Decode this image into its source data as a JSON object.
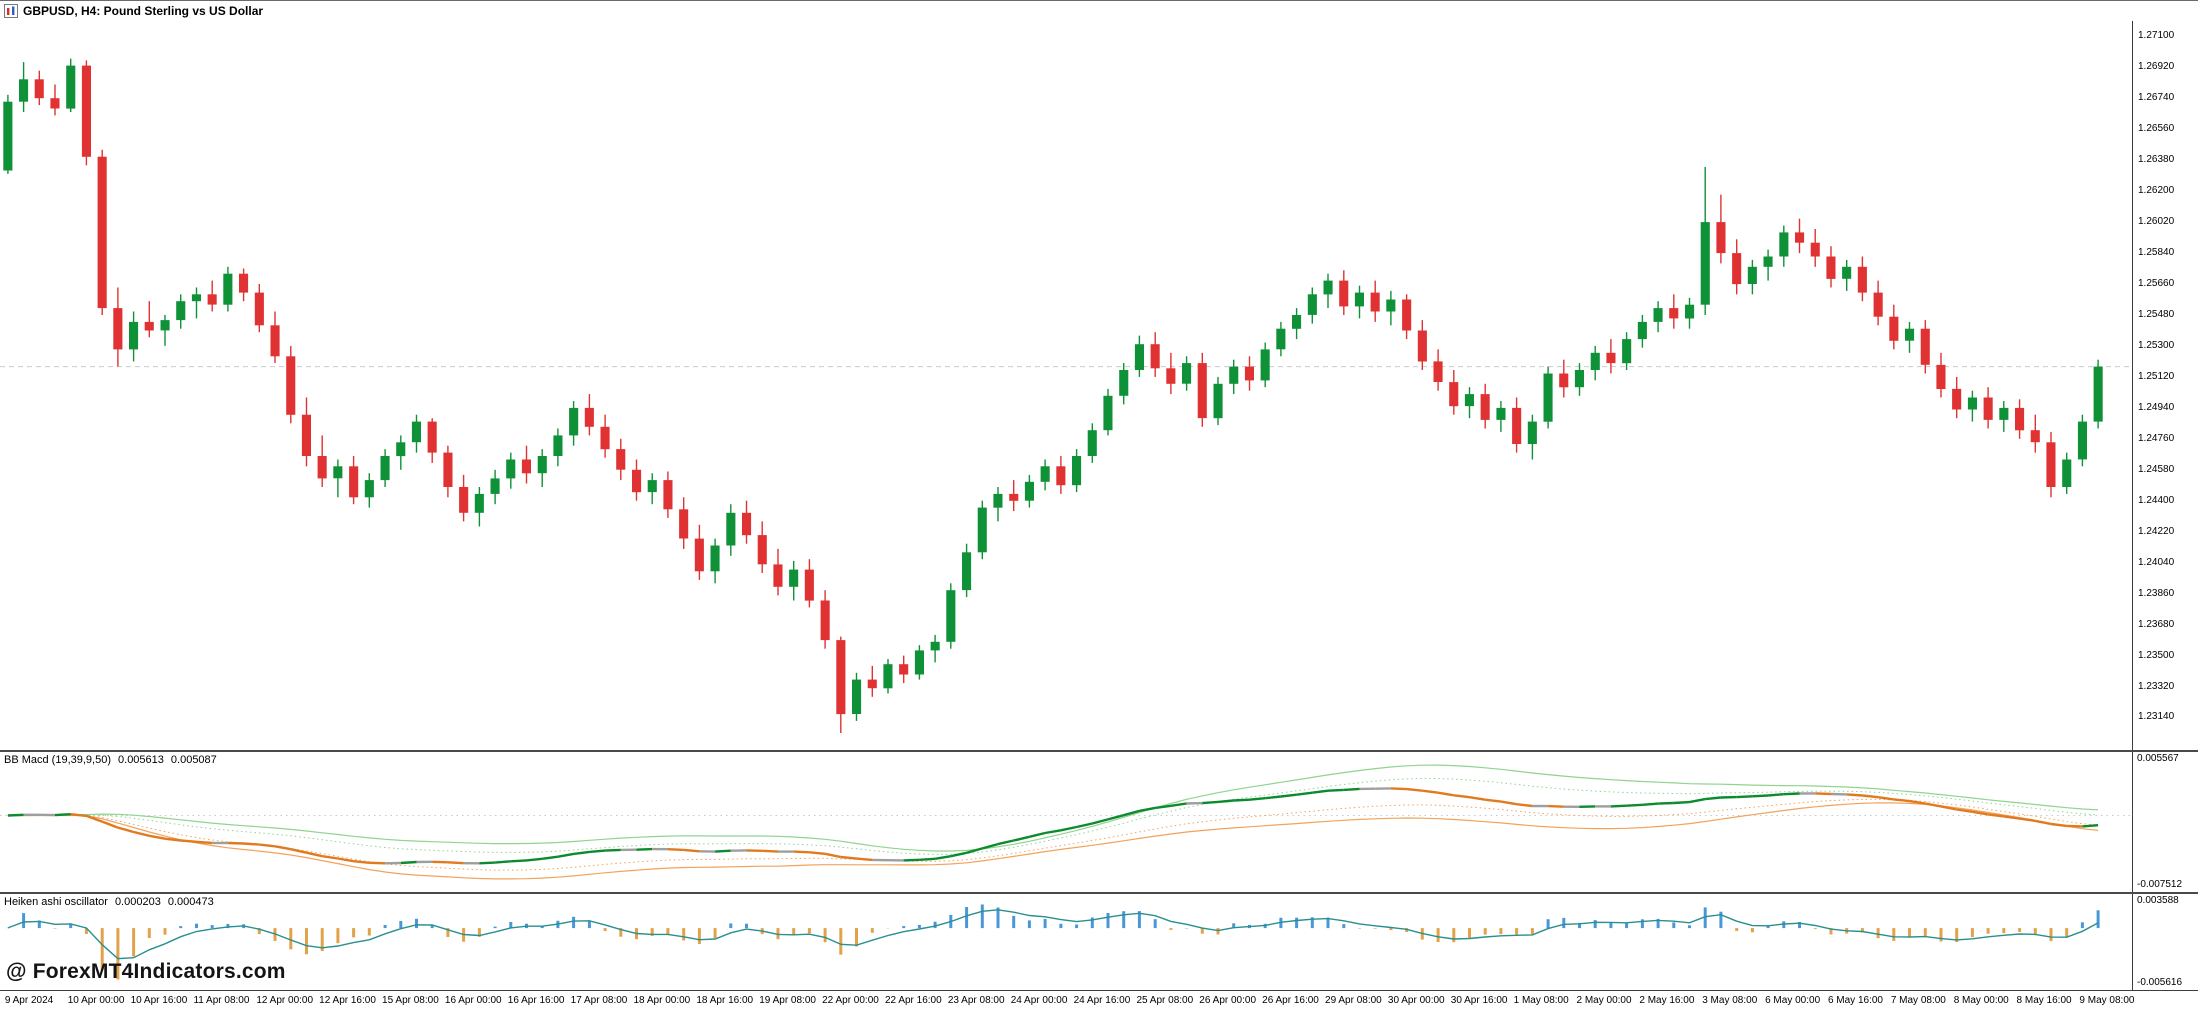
{
  "window": {
    "title": "GBPUSD, H4: Pound Sterling vs US Dollar",
    "symbol": "GBPUSD",
    "timeframe": "H4"
  },
  "watermark": "@ ForexMT4Indicators.com",
  "colors": {
    "bull": "#0f9138",
    "bear": "#e03232",
    "bid_line": "#cccccc",
    "zero_line": "#c8c8c8",
    "bb_line_up": "#0c8a2e",
    "bb_line_dn": "#e07a1e",
    "bb_line_flat": "#9e9e9e",
    "bb_band_up": "#8fd48f",
    "bb_band_dn": "#f2a25c",
    "ha_pos": "#4a97d8",
    "ha_neg": "#e2a24a",
    "ha_line": "#2a8f8f"
  },
  "chart_data": {
    "type": "candlestick",
    "title": "GBPUSD, H4: Pound Sterling vs US Dollar",
    "symbol": "GBPUSD",
    "timeframe": "H4",
    "y_max": 1.2716,
    "y_min": 1.2298,
    "bid": 1.2518,
    "price_axis_labels": [
      "1.27100",
      "1.26920",
      "1.26740",
      "1.26560",
      "1.26380",
      "1.26200",
      "1.26020",
      "1.25840",
      "1.25660",
      "1.25480",
      "1.25300",
      "1.25120",
      "1.24940",
      "1.24760",
      "1.24580",
      "1.24400",
      "1.24220",
      "1.24040",
      "1.23860",
      "1.23680",
      "1.23500",
      "1.23320",
      "1.23140"
    ],
    "candles_per_tick": 4,
    "x_tick_labels": [
      "9 Apr 2024",
      "10 Apr 00:00",
      "10 Apr 16:00",
      "11 Apr 08:00",
      "12 Apr 00:00",
      "12 Apr 16:00",
      "15 Apr 08:00",
      "16 Apr 00:00",
      "16 Apr 16:00",
      "17 Apr 08:00",
      "18 Apr 00:00",
      "18 Apr 16:00",
      "19 Apr 08:00",
      "22 Apr 00:00",
      "22 Apr 16:00",
      "23 Apr 08:00",
      "24 Apr 00:00",
      "24 Apr 16:00",
      "25 Apr 08:00",
      "26 Apr 00:00",
      "26 Apr 16:00",
      "29 Apr 08:00",
      "30 Apr 00:00",
      "30 Apr 16:00",
      "1 May 08:00",
      "2 May 00:00",
      "2 May 16:00",
      "3 May 08:00",
      "6 May 00:00",
      "6 May 16:00",
      "7 May 08:00",
      "8 May 00:00",
      "8 May 16:00",
      "9 May 08:00"
    ],
    "ohlc": [
      [
        1.2632,
        1.2676,
        1.263,
        1.2672
      ],
      [
        1.2672,
        1.2695,
        1.2666,
        1.2685
      ],
      [
        1.2685,
        1.269,
        1.267,
        1.2674
      ],
      [
        1.2674,
        1.2682,
        1.2664,
        1.2668
      ],
      [
        1.2668,
        1.2697,
        1.2666,
        1.2693
      ],
      [
        1.2693,
        1.2696,
        1.2635,
        1.264
      ],
      [
        1.264,
        1.2644,
        1.2548,
        1.2552
      ],
      [
        1.2552,
        1.2564,
        1.2518,
        1.2528
      ],
      [
        1.2528,
        1.255,
        1.2521,
        1.2544
      ],
      [
        1.2544,
        1.2556,
        1.2535,
        1.2539
      ],
      [
        1.2539,
        1.2548,
        1.253,
        1.2545
      ],
      [
        1.2545,
        1.256,
        1.254,
        1.2556
      ],
      [
        1.2556,
        1.2564,
        1.2546,
        1.256
      ],
      [
        1.256,
        1.2568,
        1.255,
        1.2554
      ],
      [
        1.2554,
        1.2576,
        1.255,
        1.2572
      ],
      [
        1.2572,
        1.2575,
        1.2556,
        1.2561
      ],
      [
        1.2561,
        1.2566,
        1.2538,
        1.2542
      ],
      [
        1.2542,
        1.255,
        1.252,
        1.2524
      ],
      [
        1.2524,
        1.253,
        1.2485,
        1.249
      ],
      [
        1.249,
        1.25,
        1.246,
        1.2466
      ],
      [
        1.2466,
        1.2478,
        1.2448,
        1.2453
      ],
      [
        1.2453,
        1.2464,
        1.2442,
        1.246
      ],
      [
        1.246,
        1.2466,
        1.2438,
        1.2442
      ],
      [
        1.2442,
        1.2456,
        1.2436,
        1.2452
      ],
      [
        1.2452,
        1.247,
        1.2448,
        1.2466
      ],
      [
        1.2466,
        1.2478,
        1.2458,
        1.2474
      ],
      [
        1.2474,
        1.249,
        1.2468,
        1.2486
      ],
      [
        1.2486,
        1.2488,
        1.2462,
        1.2468
      ],
      [
        1.2468,
        1.2472,
        1.2442,
        1.2448
      ],
      [
        1.2448,
        1.2455,
        1.2428,
        1.2433
      ],
      [
        1.2433,
        1.2448,
        1.2425,
        1.2444
      ],
      [
        1.2444,
        1.2458,
        1.2438,
        1.2453
      ],
      [
        1.2453,
        1.2468,
        1.2447,
        1.2464
      ],
      [
        1.2464,
        1.2472,
        1.245,
        1.2456
      ],
      [
        1.2456,
        1.247,
        1.2448,
        1.2466
      ],
      [
        1.2466,
        1.2482,
        1.246,
        1.2478
      ],
      [
        1.2478,
        1.2498,
        1.2472,
        1.2494
      ],
      [
        1.2494,
        1.2502,
        1.2478,
        1.2483
      ],
      [
        1.2483,
        1.249,
        1.2465,
        1.247
      ],
      [
        1.247,
        1.2476,
        1.2452,
        1.2458
      ],
      [
        1.2458,
        1.2464,
        1.244,
        1.2445
      ],
      [
        1.2445,
        1.2456,
        1.2438,
        1.2452
      ],
      [
        1.2452,
        1.2457,
        1.243,
        1.2435
      ],
      [
        1.2435,
        1.2442,
        1.2412,
        1.2418
      ],
      [
        1.2418,
        1.2426,
        1.2394,
        1.2399
      ],
      [
        1.2399,
        1.2418,
        1.2392,
        1.2414
      ],
      [
        1.2414,
        1.2438,
        1.2408,
        1.2433
      ],
      [
        1.2433,
        1.244,
        1.2415,
        1.242
      ],
      [
        1.242,
        1.2428,
        1.2398,
        1.2403
      ],
      [
        1.2403,
        1.2412,
        1.2385,
        1.239
      ],
      [
        1.239,
        1.2405,
        1.2382,
        1.24
      ],
      [
        1.24,
        1.2406,
        1.2378,
        1.2382
      ],
      [
        1.2382,
        1.2388,
        1.2354,
        1.2359
      ],
      [
        1.2359,
        1.2361,
        1.2305,
        1.2316
      ],
      [
        1.2316,
        1.234,
        1.2312,
        1.2336
      ],
      [
        1.2336,
        1.2344,
        1.2326,
        1.2331
      ],
      [
        1.2331,
        1.2348,
        1.2328,
        1.2345
      ],
      [
        1.2345,
        1.235,
        1.2334,
        1.2339
      ],
      [
        1.2339,
        1.2356,
        1.2336,
        1.2353
      ],
      [
        1.2353,
        1.2362,
        1.2346,
        1.2358
      ],
      [
        1.2358,
        1.2392,
        1.2354,
        1.2388
      ],
      [
        1.2388,
        1.2415,
        1.2384,
        1.241
      ],
      [
        1.241,
        1.244,
        1.2406,
        1.2436
      ],
      [
        1.2436,
        1.2448,
        1.2428,
        1.2444
      ],
      [
        1.2444,
        1.2452,
        1.2434,
        1.244
      ],
      [
        1.244,
        1.2455,
        1.2436,
        1.2451
      ],
      [
        1.2451,
        1.2464,
        1.2446,
        1.246
      ],
      [
        1.246,
        1.2466,
        1.2444,
        1.2449
      ],
      [
        1.2449,
        1.247,
        1.2445,
        1.2466
      ],
      [
        1.2466,
        1.2485,
        1.2462,
        1.2481
      ],
      [
        1.2481,
        1.2505,
        1.2478,
        1.2501
      ],
      [
        1.2501,
        1.252,
        1.2496,
        1.2516
      ],
      [
        1.2516,
        1.2536,
        1.2512,
        1.2531
      ],
      [
        1.2531,
        1.2538,
        1.2512,
        1.2517
      ],
      [
        1.2517,
        1.2526,
        1.2502,
        1.2508
      ],
      [
        1.2508,
        1.2524,
        1.2504,
        1.252
      ],
      [
        1.252,
        1.2526,
        1.2483,
        1.2488
      ],
      [
        1.2488,
        1.2512,
        1.2484,
        1.2508
      ],
      [
        1.2508,
        1.2522,
        1.2502,
        1.2518
      ],
      [
        1.2518,
        1.2524,
        1.2504,
        1.251
      ],
      [
        1.251,
        1.2532,
        1.2506,
        1.2528
      ],
      [
        1.2528,
        1.2544,
        1.2524,
        1.254
      ],
      [
        1.254,
        1.2552,
        1.2534,
        1.2548
      ],
      [
        1.2548,
        1.2564,
        1.2543,
        1.256
      ],
      [
        1.256,
        1.2572,
        1.2552,
        1.2568
      ],
      [
        1.2568,
        1.2574,
        1.2548,
        1.2553
      ],
      [
        1.2553,
        1.2565,
        1.2546,
        1.2561
      ],
      [
        1.2561,
        1.2568,
        1.2544,
        1.255
      ],
      [
        1.255,
        1.2562,
        1.2542,
        1.2557
      ],
      [
        1.2557,
        1.256,
        1.2534,
        1.2539
      ],
      [
        1.2539,
        1.2545,
        1.2516,
        1.2521
      ],
      [
        1.2521,
        1.2528,
        1.2504,
        1.2509
      ],
      [
        1.2509,
        1.2516,
        1.249,
        1.2495
      ],
      [
        1.2495,
        1.2506,
        1.2488,
        1.2502
      ],
      [
        1.2502,
        1.2508,
        1.2482,
        1.2487
      ],
      [
        1.2487,
        1.2498,
        1.248,
        1.2494
      ],
      [
        1.2494,
        1.25,
        1.2468,
        1.2473
      ],
      [
        1.2473,
        1.249,
        1.2464,
        1.2486
      ],
      [
        1.2486,
        1.2518,
        1.2482,
        1.2514
      ],
      [
        1.2514,
        1.2522,
        1.25,
        1.2506
      ],
      [
        1.2506,
        1.252,
        1.2501,
        1.2516
      ],
      [
        1.2516,
        1.253,
        1.251,
        1.2526
      ],
      [
        1.2526,
        1.2534,
        1.2514,
        1.252
      ],
      [
        1.252,
        1.2538,
        1.2516,
        1.2534
      ],
      [
        1.2534,
        1.2548,
        1.2529,
        1.2544
      ],
      [
        1.2544,
        1.2556,
        1.2538,
        1.2552
      ],
      [
        1.2552,
        1.256,
        1.254,
        1.2546
      ],
      [
        1.2546,
        1.2558,
        1.254,
        1.2554
      ],
      [
        1.2554,
        1.2634,
        1.2548,
        1.2602
      ],
      [
        1.2602,
        1.2618,
        1.2578,
        1.2584
      ],
      [
        1.2584,
        1.2592,
        1.256,
        1.2566
      ],
      [
        1.2566,
        1.258,
        1.256,
        1.2576
      ],
      [
        1.2576,
        1.2586,
        1.2568,
        1.2582
      ],
      [
        1.2582,
        1.26,
        1.2576,
        1.2596
      ],
      [
        1.2596,
        1.2604,
        1.2584,
        1.259
      ],
      [
        1.259,
        1.2598,
        1.2576,
        1.2582
      ],
      [
        1.2582,
        1.2588,
        1.2564,
        1.2569
      ],
      [
        1.2569,
        1.258,
        1.2562,
        1.2576
      ],
      [
        1.2576,
        1.2582,
        1.2556,
        1.2561
      ],
      [
        1.2561,
        1.2568,
        1.2542,
        1.2547
      ],
      [
        1.2547,
        1.2554,
        1.2528,
        1.2533
      ],
      [
        1.2533,
        1.2544,
        1.2526,
        1.254
      ],
      [
        1.254,
        1.2545,
        1.2514,
        1.2519
      ],
      [
        1.2519,
        1.2526,
        1.25,
        1.2505
      ],
      [
        1.2505,
        1.2512,
        1.2488,
        1.2493
      ],
      [
        1.2493,
        1.2504,
        1.2486,
        1.25
      ],
      [
        1.25,
        1.2506,
        1.2482,
        1.2487
      ],
      [
        1.2487,
        1.2498,
        1.248,
        1.2494
      ],
      [
        1.2494,
        1.2499,
        1.2476,
        1.2481
      ],
      [
        1.2481,
        1.249,
        1.2468,
        1.2474
      ],
      [
        1.2474,
        1.248,
        1.2442,
        1.2448
      ],
      [
        1.2448,
        1.2468,
        1.2444,
        1.2464
      ],
      [
        1.2464,
        1.249,
        1.246,
        1.2486
      ],
      [
        1.2486,
        1.2522,
        1.2482,
        1.2518
      ]
    ],
    "indicators": [
      {
        "name": "BB Macd (19,39,9,50)",
        "value_1": "0.005613",
        "value_2": "0.005087",
        "axis_max": "0.005567",
        "axis_min": "-0.007512"
      },
      {
        "name": "Heiken ashi oscillator",
        "value_1": "0.000203",
        "value_2": "0.000473",
        "axis_max": "0.003588",
        "axis_min": "-0.005616"
      }
    ]
  }
}
